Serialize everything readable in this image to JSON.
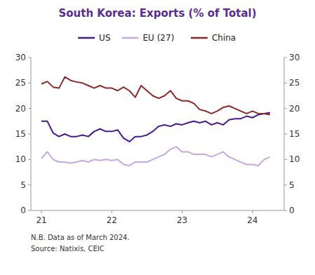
{
  "chart_data": {
    "type": "line",
    "title": "South Korea: Exports (% of Total)",
    "annotations": [
      "N.B. Data as of March 2024.",
      "Source: Natixis, CEIC"
    ],
    "x": [
      2021,
      2021.0833333333333,
      2021.1666666666667,
      2021.25,
      2021.3333333333333,
      2021.4166666666667,
      2021.5,
      2021.5833333333333,
      2021.6666666666667,
      2021.75,
      2021.8333333333333,
      2021.9166666666667,
      2022,
      2022.0833333333333,
      2022.1666666666667,
      2022.25,
      2022.3333333333333,
      2022.4166666666667,
      2022.5,
      2022.5833333333333,
      2022.6666666666667,
      2022.75,
      2022.8333333333333,
      2022.9166666666667,
      2023,
      2023.0833333333333,
      2023.1666666666667,
      2023.25,
      2023.3333333333333,
      2023.4166666666667,
      2023.5,
      2023.5833333333333,
      2023.6666666666667,
      2023.75,
      2023.8333333333333,
      2023.9166666666667,
      2024,
      2024.0833333333333,
      2024.1666666666667,
      2024.25
    ],
    "series": [
      {
        "name": "US",
        "color": "#4a1a8c",
        "values": [
          17.5,
          17.5,
          15.2,
          14.5,
          15.0,
          14.5,
          14.5,
          14.8,
          14.5,
          15.5,
          16.0,
          15.5,
          15.5,
          15.8,
          14.2,
          13.5,
          14.5,
          14.5,
          14.8,
          15.5,
          16.5,
          16.8,
          16.5,
          17.0,
          16.8,
          17.2,
          17.5,
          17.2,
          17.5,
          16.8,
          17.2,
          16.8,
          17.8,
          18.0,
          18.0,
          18.5,
          18.2,
          18.8,
          19.0,
          19.2
        ]
      },
      {
        "name": "EU (27)",
        "color": "#c8a8e0",
        "values": [
          10.2,
          11.5,
          10.0,
          9.5,
          9.5,
          9.3,
          9.5,
          9.8,
          9.5,
          10.0,
          9.8,
          10.0,
          9.8,
          10.0,
          9.0,
          8.8,
          9.5,
          9.5,
          9.5,
          10.0,
          10.5,
          11.0,
          12.0,
          12.5,
          11.5,
          11.5,
          11.0,
          11.0,
          11.0,
          10.5,
          11.0,
          11.5,
          10.5,
          10.0,
          9.5,
          9.0,
          9.0,
          8.8,
          10.0,
          10.5
        ]
      },
      {
        "name": "China",
        "color": "#8b2a2a",
        "values": [
          24.8,
          25.3,
          24.2,
          24.0,
          26.2,
          25.5,
          25.2,
          25.0,
          24.5,
          24.0,
          24.5,
          24.0,
          24.0,
          23.5,
          24.2,
          23.5,
          22.2,
          24.5,
          23.5,
          22.5,
          22.0,
          22.5,
          23.5,
          22.0,
          21.5,
          21.5,
          21.0,
          19.8,
          19.5,
          19.0,
          19.5,
          20.2,
          20.5,
          20.0,
          19.5,
          19.0,
          19.5,
          19.0,
          19.0,
          18.8
        ]
      }
    ],
    "xlim": [
      2020.85,
      2024.45
    ],
    "xticks": [
      {
        "value": 2021,
        "label": "21"
      },
      {
        "value": 2022,
        "label": "22"
      },
      {
        "value": 2023,
        "label": "23"
      },
      {
        "value": 2024,
        "label": "24"
      }
    ],
    "ylim": [
      0,
      30
    ],
    "yticks": [
      0,
      5,
      10,
      15,
      20,
      25,
      30
    ],
    "y2lim": [
      0,
      30
    ],
    "y2ticks": [
      0,
      5,
      10,
      15,
      20,
      25,
      30
    ],
    "grid": false,
    "legend": "top"
  }
}
